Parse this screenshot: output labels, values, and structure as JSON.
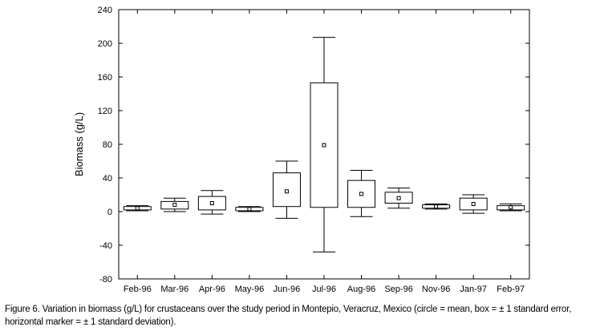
{
  "chart_data": {
    "type": "box",
    "ylabel": "Biomass (g/L)",
    "ylim": [
      -80,
      240
    ],
    "yticks": [
      -80,
      -40,
      0,
      40,
      80,
      120,
      160,
      200,
      240
    ],
    "grid": false,
    "categories": [
      "Feb-96",
      "Mar-96",
      "Apr-96",
      "May-96",
      "Jun-96",
      "Jul-96",
      "Aug-96",
      "Sep-96",
      "Nov-96",
      "Jan-97",
      "Feb-97"
    ],
    "series": [
      {
        "mean": [
          4,
          8,
          10,
          3,
          24,
          79,
          21,
          16,
          6,
          9,
          5
        ],
        "se_low": [
          2,
          3,
          2,
          1,
          6,
          5,
          5,
          10,
          4,
          2,
          2
        ],
        "se_high": [
          6,
          12,
          18,
          5,
          46,
          153,
          37,
          23,
          8,
          16,
          7
        ],
        "sd_low": [
          1,
          0,
          -3,
          0,
          -8,
          -48,
          -6,
          4,
          3,
          -2,
          1
        ],
        "sd_high": [
          7,
          16,
          25,
          6,
          60,
          207,
          49,
          28,
          9,
          20,
          9
        ]
      }
    ]
  },
  "caption": "Figure 6. Variation in biomass (g/L) for crustaceans over the study period in Montepio, Veracruz, Mexico (circle = mean, box = ± 1 standard error, horizontal marker = ± 1 standard deviation)."
}
